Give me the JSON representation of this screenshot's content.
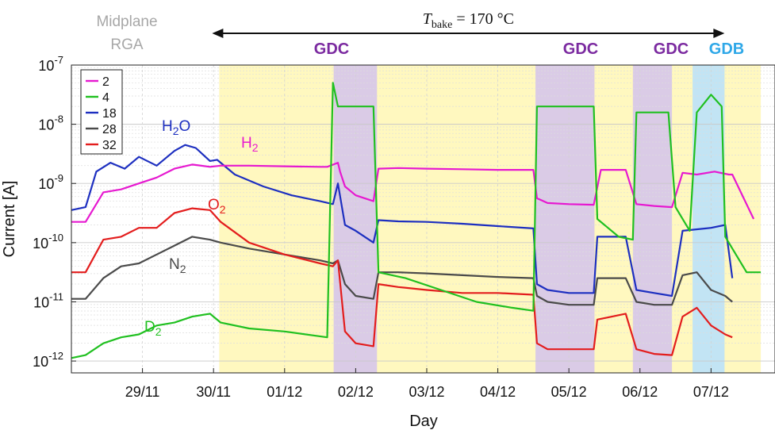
{
  "top_left_label": {
    "line1": "Midplane",
    "line2": "RGA"
  },
  "bake_annotation": {
    "prefix": "T",
    "subscript": "bake",
    "value": " = 170 °C"
  },
  "colors": {
    "2": "#e619d0",
    "4": "#20c020",
    "18": "#1d2fc0",
    "28": "#4a4a4a",
    "32": "#e31d1d",
    "bake_fill": "#fff8bf",
    "gdc_fill": "#d8c8e8",
    "gdb_fill": "#bfe3f7",
    "gdc_text": "#7b2aa0",
    "gdb_text": "#2fa8e8"
  },
  "phase_labels": [
    {
      "id": "gdc1",
      "text": "GDC"
    },
    {
      "id": "gdc2",
      "text": "GDC"
    },
    {
      "id": "gdc3",
      "text": "GDC"
    },
    {
      "id": "gdb1",
      "text": "GDB"
    }
  ],
  "species_labels": [
    {
      "id": "h2o",
      "base": "H",
      "sub": "2",
      "tail": "O"
    },
    {
      "id": "h2",
      "base": "H",
      "sub": "2",
      "tail": ""
    },
    {
      "id": "o2",
      "base": "O",
      "sub": "2",
      "tail": ""
    },
    {
      "id": "n2",
      "base": "N",
      "sub": "2",
      "tail": ""
    },
    {
      "id": "d2",
      "base": "D",
      "sub": "2",
      "tail": ""
    }
  ],
  "chart_data": {
    "type": "line",
    "title": "",
    "xlabel": "Day",
    "ylabel": "Current [A]",
    "y_scale": "log",
    "ylim": [
      1e-12,
      1e-07
    ],
    "xlim": [
      "28/11 12:00",
      "07/12 18:00"
    ],
    "grid": true,
    "legend_location": "top-left",
    "legend_entries": [
      "2",
      "4",
      "18",
      "28",
      "32"
    ],
    "x_ticks": [
      "29/11",
      "30/11",
      "01/12",
      "02/12",
      "03/12",
      "04/12",
      "05/12",
      "06/12",
      "07/12"
    ],
    "y_ticks": [
      "10-12",
      "10-11",
      "10-10",
      "10-9",
      "10-8",
      "10-7"
    ],
    "y_tick_values": [
      -12,
      -11,
      -10,
      -9,
      -8,
      -7
    ],
    "shaded_periods": [
      {
        "label": "bake",
        "start": 2.08,
        "end": 9.7,
        "kind": "bake"
      },
      {
        "label": "GDC",
        "start": 3.69,
        "end": 4.3,
        "kind": "gdc"
      },
      {
        "label": "GDC",
        "start": 6.53,
        "end": 7.36,
        "kind": "gdc"
      },
      {
        "label": "GDC",
        "start": 7.9,
        "end": 8.45,
        "kind": "gdc"
      },
      {
        "label": "GDB",
        "start": 8.74,
        "end": 9.19,
        "kind": "gdb"
      }
    ],
    "bake_arrow": {
      "start": 1.98,
      "end": 9.19
    },
    "series": [
      {
        "name": "2",
        "x": [
          0,
          0.2,
          0.45,
          0.7,
          0.95,
          1.2,
          1.45,
          1.7,
          1.95,
          2.1,
          2.5,
          3.0,
          3.5,
          3.6,
          3.75,
          3.78,
          3.85,
          4.0,
          4.25,
          4.32,
          4.6,
          5.0,
          5.5,
          6.0,
          6.5,
          6.55,
          6.7,
          7.0,
          7.35,
          7.45,
          7.8,
          7.95,
          8.2,
          8.45,
          8.6,
          8.8,
          9.05,
          9.25,
          9.3,
          9.6
        ],
        "y": [
          -9.65,
          -9.65,
          -9.15,
          -9.1,
          -9.0,
          -8.9,
          -8.75,
          -8.68,
          -8.72,
          -8.7,
          -8.7,
          -8.71,
          -8.72,
          -8.72,
          -8.65,
          -8.8,
          -9.05,
          -9.2,
          -9.3,
          -8.75,
          -8.74,
          -8.75,
          -8.76,
          -8.77,
          -8.77,
          -9.25,
          -9.33,
          -9.35,
          -9.36,
          -8.77,
          -8.77,
          -9.35,
          -9.38,
          -9.4,
          -8.82,
          -8.85,
          -8.8,
          -8.85,
          -8.85,
          -9.6
        ]
      },
      {
        "name": "4",
        "x": [
          0,
          0.2,
          0.45,
          0.7,
          0.95,
          1.2,
          1.45,
          1.7,
          1.95,
          2.1,
          2.5,
          3.0,
          3.6,
          3.68,
          3.75,
          4.0,
          4.25,
          4.32,
          4.7,
          5.2,
          5.7,
          6.2,
          6.5,
          6.55,
          6.8,
          7.35,
          7.4,
          7.7,
          7.9,
          7.95,
          8.4,
          8.5,
          8.7,
          8.8,
          9.0,
          9.15,
          9.2,
          9.5,
          9.7
        ],
        "y": [
          -11.95,
          -11.9,
          -11.7,
          -11.6,
          -11.55,
          -11.4,
          -11.35,
          -11.25,
          -11.2,
          -11.35,
          -11.45,
          -11.5,
          -11.6,
          -7.3,
          -7.7,
          -7.7,
          -7.7,
          -10.5,
          -10.6,
          -10.8,
          -11.0,
          -11.1,
          -11.15,
          -7.7,
          -7.7,
          -7.7,
          -9.6,
          -9.9,
          -9.95,
          -7.8,
          -7.8,
          -9.4,
          -9.8,
          -7.8,
          -7.5,
          -7.7,
          -9.9,
          -10.5,
          -10.5
        ]
      },
      {
        "name": "18",
        "x": [
          0,
          0.2,
          0.35,
          0.55,
          0.75,
          0.95,
          1.2,
          1.45,
          1.6,
          1.75,
          1.95,
          2.05,
          2.3,
          2.7,
          3.1,
          3.5,
          3.68,
          3.75,
          3.85,
          4.0,
          4.25,
          4.32,
          4.6,
          5.0,
          5.5,
          6.0,
          6.5,
          6.55,
          6.7,
          7.0,
          7.35,
          7.4,
          7.8,
          7.95,
          8.2,
          8.45,
          8.6,
          9.0,
          9.2,
          9.3
        ],
        "y": [
          -9.45,
          -9.4,
          -8.8,
          -8.65,
          -8.75,
          -8.55,
          -8.7,
          -8.45,
          -8.35,
          -8.4,
          -8.62,
          -8.6,
          -8.85,
          -9.05,
          -9.2,
          -9.3,
          -9.35,
          -9.0,
          -9.7,
          -9.8,
          -10.0,
          -9.62,
          -9.64,
          -9.65,
          -9.68,
          -9.72,
          -9.76,
          -10.7,
          -10.8,
          -10.85,
          -10.85,
          -9.9,
          -9.9,
          -10.8,
          -10.85,
          -10.9,
          -9.8,
          -9.75,
          -9.7,
          -10.6
        ]
      },
      {
        "name": "28",
        "x": [
          0,
          0.2,
          0.45,
          0.7,
          0.95,
          1.2,
          1.45,
          1.7,
          1.95,
          2.1,
          2.5,
          3.0,
          3.5,
          3.68,
          3.75,
          3.85,
          4.0,
          4.25,
          4.32,
          4.6,
          5.0,
          5.5,
          6.0,
          6.5,
          6.55,
          6.7,
          7.0,
          7.35,
          7.4,
          7.8,
          7.95,
          8.2,
          8.45,
          8.6,
          8.8,
          9.0,
          9.2,
          9.3
        ],
        "y": [
          -10.95,
          -10.95,
          -10.6,
          -10.4,
          -10.35,
          -10.2,
          -10.05,
          -9.9,
          -9.95,
          -10.0,
          -10.1,
          -10.2,
          -10.3,
          -10.35,
          -10.3,
          -10.7,
          -10.9,
          -10.95,
          -10.5,
          -10.5,
          -10.52,
          -10.55,
          -10.58,
          -10.6,
          -10.9,
          -11.0,
          -11.05,
          -11.05,
          -10.6,
          -10.6,
          -11.0,
          -11.05,
          -11.05,
          -10.55,
          -10.5,
          -10.8,
          -10.9,
          -11.0
        ]
      },
      {
        "name": "32",
        "x": [
          0,
          0.2,
          0.45,
          0.7,
          0.95,
          1.2,
          1.45,
          1.7,
          1.95,
          2.1,
          2.5,
          3.0,
          3.5,
          3.68,
          3.75,
          3.85,
          4.0,
          4.25,
          4.32,
          4.6,
          5.0,
          5.5,
          6.0,
          6.5,
          6.55,
          6.7,
          7.0,
          7.35,
          7.4,
          7.8,
          7.95,
          8.2,
          8.45,
          8.6,
          8.8,
          9.0,
          9.2,
          9.3
        ],
        "y": [
          -10.5,
          -10.5,
          -9.95,
          -9.9,
          -9.75,
          -9.75,
          -9.5,
          -9.42,
          -9.45,
          -9.65,
          -10.0,
          -10.2,
          -10.35,
          -10.4,
          -10.3,
          -11.5,
          -11.7,
          -11.75,
          -10.7,
          -10.75,
          -10.8,
          -10.85,
          -10.85,
          -10.88,
          -11.7,
          -11.8,
          -11.8,
          -11.8,
          -11.3,
          -11.2,
          -11.8,
          -11.88,
          -11.9,
          -11.25,
          -11.1,
          -11.4,
          -11.55,
          -11.6
        ]
      }
    ],
    "annotations": [
      "GDC",
      "GDC",
      "GDC",
      "GDB",
      "H2O",
      "H2",
      "O2",
      "N2",
      "D2"
    ]
  }
}
